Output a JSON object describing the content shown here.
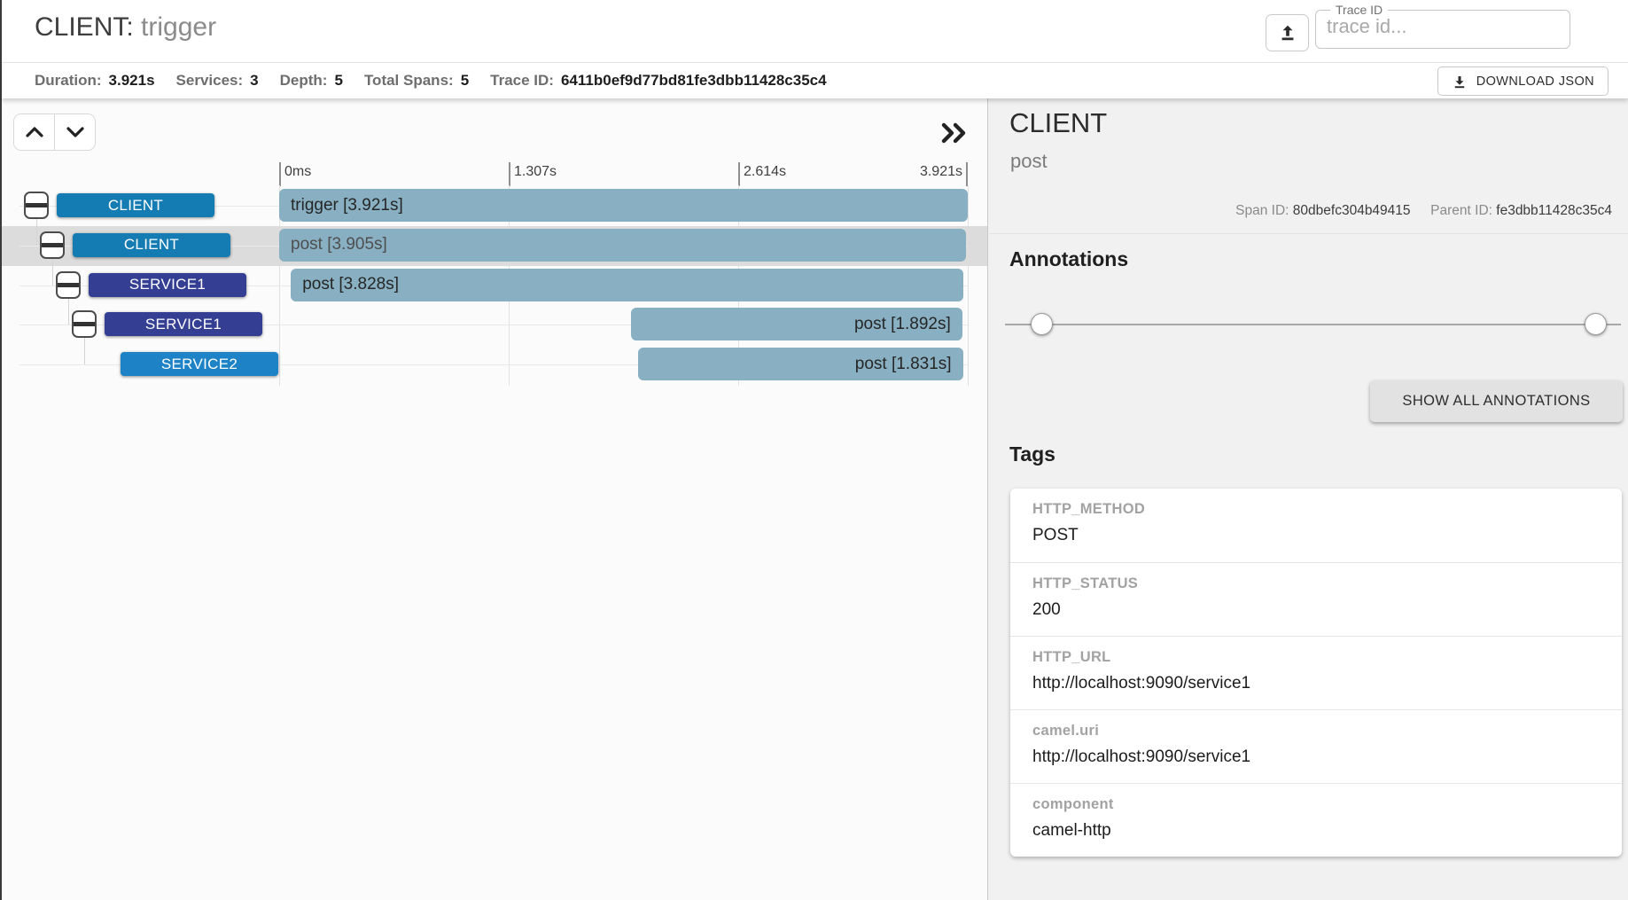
{
  "header": {
    "service": "CLIENT",
    "separator": ": ",
    "span_name": "trigger",
    "trace_id_label": "Trace ID",
    "trace_id_placeholder": "trace id...",
    "trace_id_value": ""
  },
  "stats": {
    "items": [
      {
        "label": "Duration:",
        "value": "3.921s"
      },
      {
        "label": "Services:",
        "value": "3"
      },
      {
        "label": "Depth:",
        "value": "5"
      },
      {
        "label": "Total Spans:",
        "value": "5"
      },
      {
        "label": "Trace ID:",
        "value": "6411b0ef9d77bd81fe3dbb11428c35c4"
      }
    ],
    "download_button_label": "DOWNLOAD JSON"
  },
  "icons": {
    "upload": "upload-icon",
    "download": "download-icon",
    "up": "chevron-up-icon",
    "down": "chevron-down-icon",
    "collapse_all": "double-chevron-right-icon",
    "row_toggle": "collapse-toggle-icon"
  },
  "service_colors": {
    "CLIENT": "#147cb3",
    "SERVICE1": "#343e93",
    "SERVICE2": "#1d83c6"
  },
  "timeline": {
    "ticks": [
      {
        "label": "0ms",
        "pct": 0
      },
      {
        "label": "1.307s",
        "pct": 33.33
      },
      {
        "label": "2.614s",
        "pct": 66.67
      },
      {
        "label": "3.921s",
        "pct": 100
      }
    ],
    "total_duration": "3.921s",
    "spans": [
      {
        "service": "CLIENT",
        "label": "trigger [3.921s]",
        "duration": "3.921s",
        "depth": 0,
        "start_pct": 0,
        "width_pct": 100,
        "selected": false,
        "align": "left",
        "has_toggle": true
      },
      {
        "service": "CLIENT",
        "label": "post [3.905s]",
        "duration": "3.905s",
        "depth": 1,
        "start_pct": 0,
        "width_pct": 99.8,
        "selected": true,
        "align": "left",
        "has_toggle": true
      },
      {
        "service": "SERVICE1",
        "label": "post [3.828s]",
        "duration": "3.828s",
        "depth": 2,
        "start_pct": 1.7,
        "width_pct": 97.6,
        "selected": false,
        "align": "left",
        "has_toggle": true
      },
      {
        "service": "SERVICE1",
        "label": "post [1.892s]",
        "duration": "1.892s",
        "depth": 3,
        "start_pct": 51.1,
        "width_pct": 48.1,
        "selected": false,
        "align": "right",
        "has_toggle": true
      },
      {
        "service": "SERVICE2",
        "label": "post [1.831s]",
        "duration": "1.831s",
        "depth": 4,
        "start_pct": 52.1,
        "width_pct": 47.2,
        "selected": false,
        "align": "right",
        "has_toggle": false
      }
    ]
  },
  "detail": {
    "service": "CLIENT",
    "span_name": "post",
    "span_id_label": "Span ID:",
    "span_id": "80dbefc304b49415",
    "parent_id_label": "Parent ID:",
    "parent_id": "fe3dbb11428c35c4",
    "annotations_heading": "Annotations",
    "show_all_button_label": "SHOW ALL ANNOTATIONS",
    "tags_heading": "Tags",
    "tags": [
      {
        "key": "HTTP_METHOD",
        "value": "POST"
      },
      {
        "key": "HTTP_STATUS",
        "value": "200"
      },
      {
        "key": "HTTP_URL",
        "value": "http://localhost:9090/service1"
      },
      {
        "key": "camel.uri",
        "value": "http://localhost:9090/service1"
      },
      {
        "key": "component",
        "value": "camel-http"
      }
    ]
  }
}
